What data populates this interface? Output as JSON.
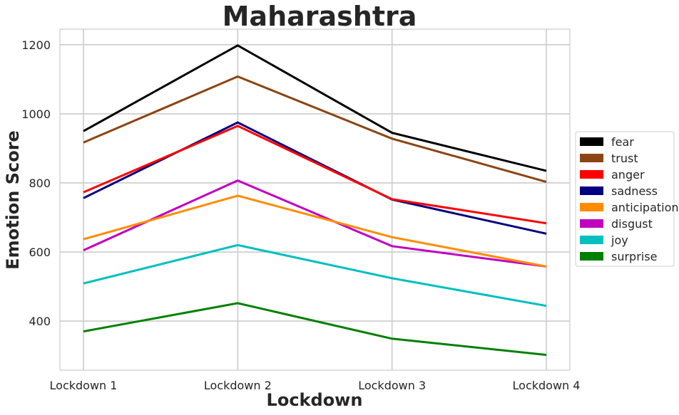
{
  "chart_data": {
    "type": "line",
    "title": "Maharashtra",
    "xlabel": "Lockdown",
    "ylabel": "Emotion Score",
    "categories": [
      "Lockdown 1",
      "Lockdown 2",
      "Lockdown 3",
      "Lockdown 4"
    ],
    "ylim": [
      258,
      1245
    ],
    "yticks": [
      400,
      600,
      800,
      1000,
      1200
    ],
    "grid": true,
    "legend_position": "right",
    "series": [
      {
        "name": "fear",
        "color": "#000000",
        "values": [
          950,
          1198,
          945,
          835
        ]
      },
      {
        "name": "trust",
        "color": "#8B4513",
        "values": [
          917,
          1108,
          928,
          803
        ]
      },
      {
        "name": "anger",
        "color": "#FF0000",
        "values": [
          773,
          965,
          753,
          683
        ]
      },
      {
        "name": "sadness",
        "color": "#000080",
        "values": [
          756,
          975,
          752,
          653
        ]
      },
      {
        "name": "anticipation",
        "color": "#FF8C00",
        "values": [
          637,
          763,
          643,
          558
        ]
      },
      {
        "name": "disgust",
        "color": "#C000C0",
        "values": [
          605,
          807,
          617,
          558
        ]
      },
      {
        "name": "joy",
        "color": "#00BFBF",
        "values": [
          509,
          620,
          524,
          444
        ]
      },
      {
        "name": "surprise",
        "color": "#008000",
        "values": [
          370,
          452,
          349,
          302
        ]
      }
    ]
  }
}
